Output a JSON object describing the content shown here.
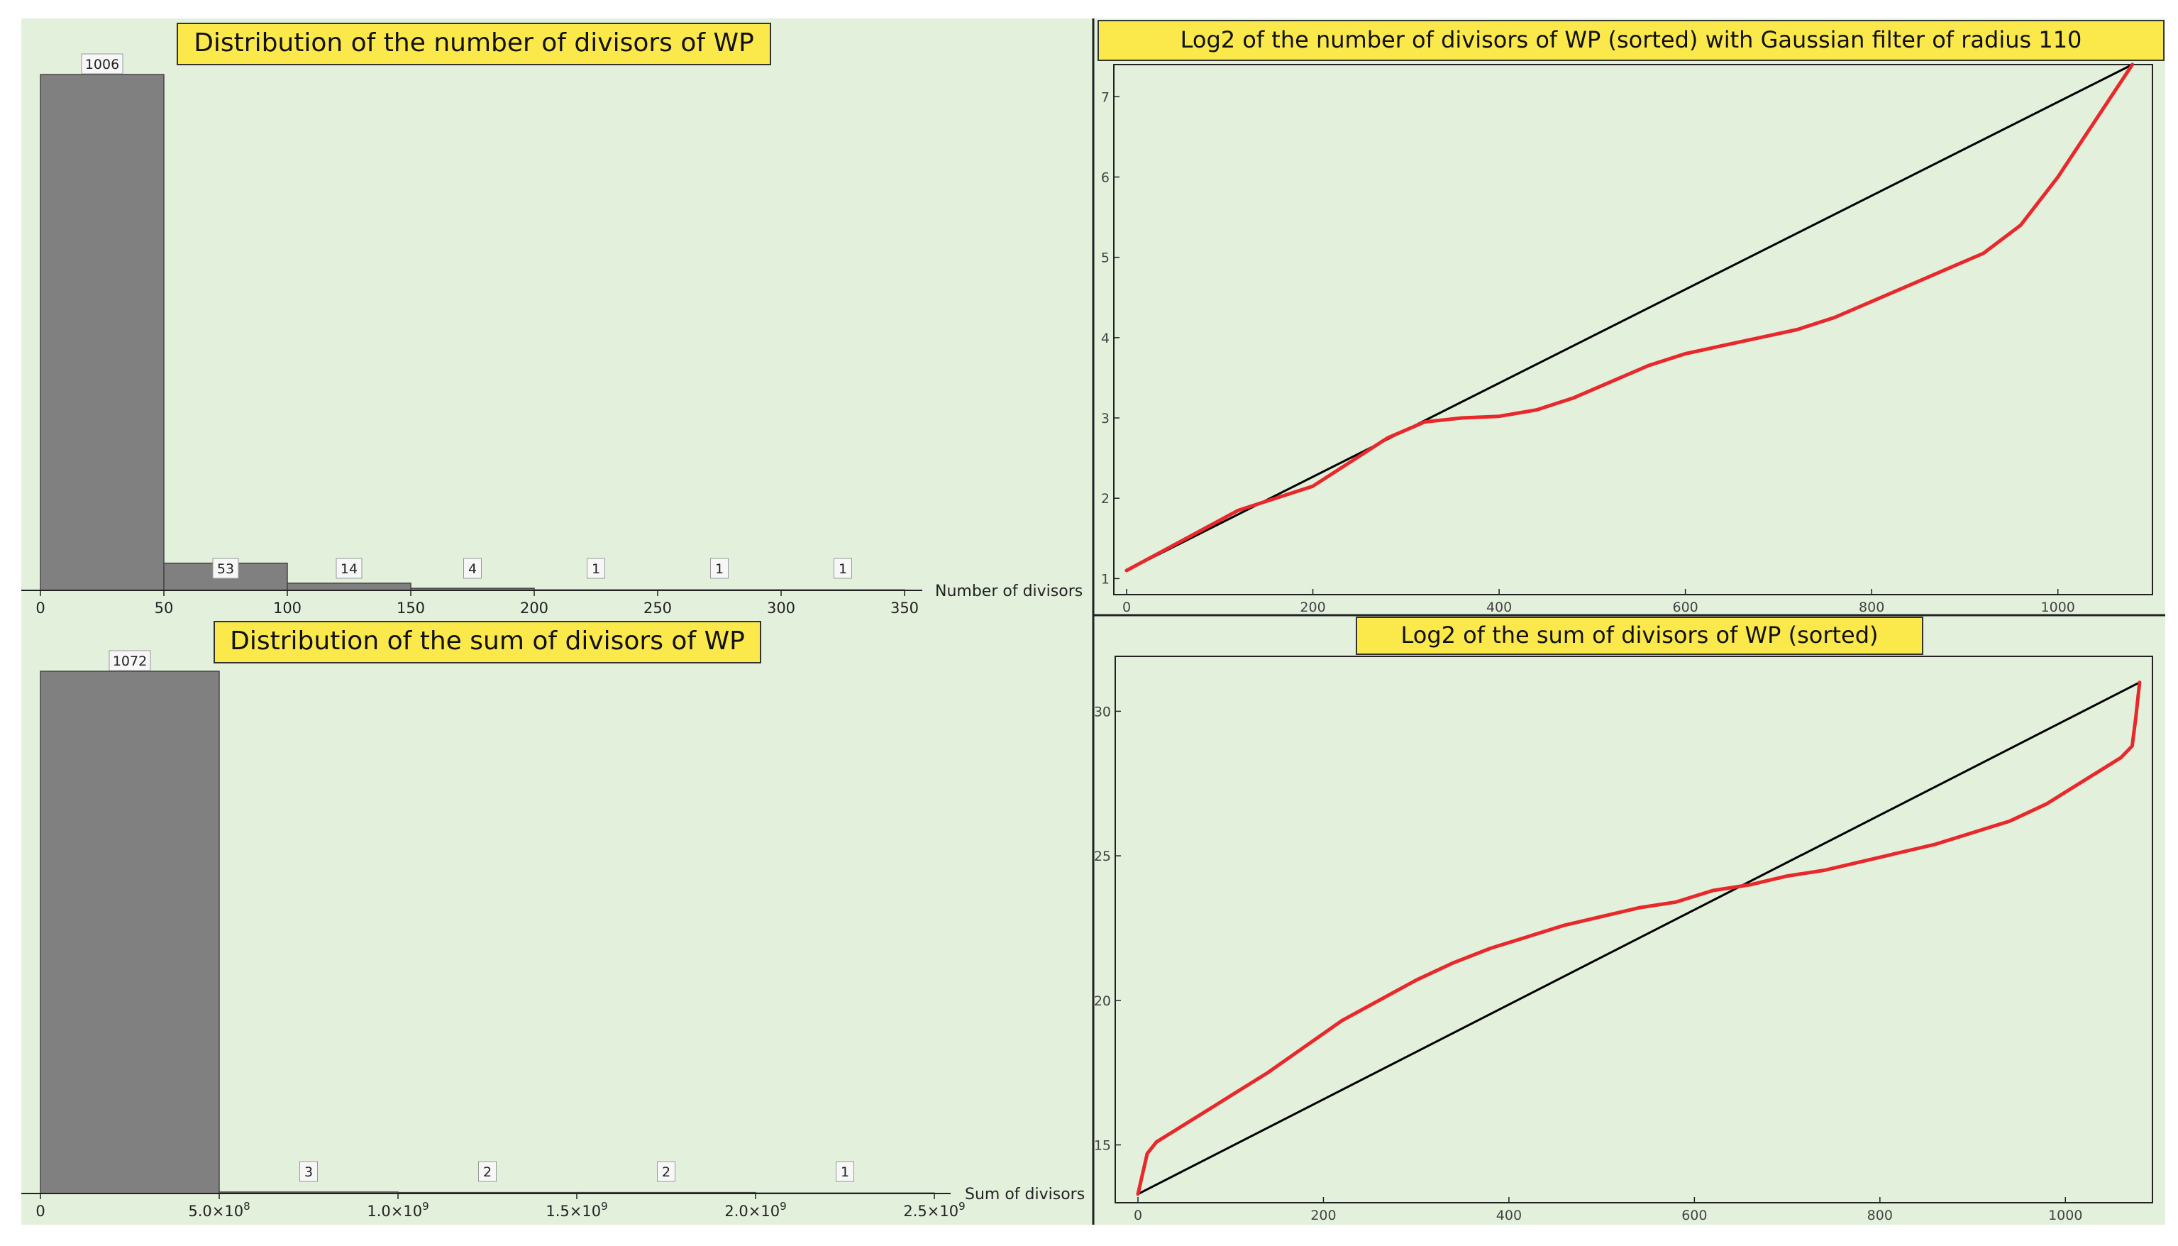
{
  "chart_data": [
    {
      "type": "bar",
      "title": "Distribution of the number of divisors of WP",
      "xlabel": "Number of divisors",
      "ylabel": "",
      "xlim": [
        0,
        350
      ],
      "bins": [
        {
          "from": 0,
          "to": 50,
          "count": 1006
        },
        {
          "from": 50,
          "to": 100,
          "count": 53
        },
        {
          "from": 100,
          "to": 150,
          "count": 14
        },
        {
          "from": 150,
          "to": 200,
          "count": 4
        },
        {
          "from": 200,
          "to": 250,
          "count": 1
        },
        {
          "from": 250,
          "to": 300,
          "count": 1
        },
        {
          "from": 300,
          "to": 350,
          "count": 1
        }
      ],
      "data_labels": [
        "1006",
        "53",
        "14",
        "4",
        "1",
        "1",
        "1"
      ],
      "x_ticks": [
        "0",
        "50",
        "100",
        "150",
        "200",
        "250",
        "300",
        "350"
      ],
      "colors": {
        "bar": "#808080",
        "background": "#e3f0dc",
        "title_box": "#fbe94c"
      }
    },
    {
      "type": "line",
      "title": "Log2 of the number of divisors of WP (sorted) with Gaussian filter of radius 110",
      "xlim": [
        0,
        1100
      ],
      "ylim": [
        0.8,
        7.4
      ],
      "x_ticks": [
        "0",
        "200",
        "400",
        "600",
        "800",
        "1000"
      ],
      "y_ticks": [
        "1",
        "2",
        "3",
        "4",
        "5",
        "6",
        "7"
      ],
      "series": [
        {
          "color": "#000000",
          "x": [
            0,
            1080
          ],
          "y": [
            1.1,
            7.4
          ]
        },
        {
          "color": "#e8282b",
          "x": [
            0,
            40,
            80,
            120,
            160,
            200,
            240,
            280,
            320,
            360,
            400,
            440,
            480,
            520,
            560,
            600,
            640,
            680,
            720,
            760,
            800,
            840,
            880,
            920,
            960,
            1000,
            1040,
            1080
          ],
          "y": [
            1.1,
            1.35,
            1.6,
            1.85,
            2.0,
            2.15,
            2.45,
            2.75,
            2.95,
            3.0,
            3.02,
            3.1,
            3.25,
            3.45,
            3.65,
            3.8,
            3.9,
            4.0,
            4.1,
            4.25,
            4.45,
            4.65,
            4.85,
            5.05,
            5.4,
            6.0,
            6.7,
            7.4
          ]
        }
      ],
      "colors": {
        "background": "#e3f0dc",
        "title_box": "#fbe94c"
      }
    },
    {
      "type": "bar",
      "title": "Distribution of the sum of divisors of WP",
      "xlabel": "Sum of divisors",
      "ylabel": "",
      "xlim": [
        0,
        2500000000
      ],
      "bins": [
        {
          "from": 0,
          "to": 500000000,
          "count": 1072
        },
        {
          "from": 500000000,
          "to": 1000000000,
          "count": 3
        },
        {
          "from": 1000000000,
          "to": 1500000000,
          "count": 2
        },
        {
          "from": 1500000000,
          "to": 2000000000,
          "count": 2
        },
        {
          "from": 2000000000,
          "to": 2500000000,
          "count": 1
        }
      ],
      "data_labels": [
        "1072",
        "3",
        "2",
        "2",
        "1"
      ],
      "x_ticks": [
        {
          "base": "0",
          "exp": ""
        },
        {
          "base": "5.0×10",
          "exp": "8"
        },
        {
          "base": "1.0×10",
          "exp": "9"
        },
        {
          "base": "1.5×10",
          "exp": "9"
        },
        {
          "base": "2.0×10",
          "exp": "9"
        },
        {
          "base": "2.5×10",
          "exp": "9"
        }
      ],
      "colors": {
        "bar": "#808080",
        "background": "#e3f0dc",
        "title_box": "#fbe94c"
      }
    },
    {
      "type": "line",
      "title": "Log2 of the sum of divisors of WP (sorted)",
      "xlim": [
        0,
        1100
      ],
      "ylim": [
        13,
        31.9
      ],
      "x_ticks": [
        "0",
        "200",
        "400",
        "600",
        "800",
        "1000"
      ],
      "y_ticks": [
        "15",
        "20",
        "25",
        "30"
      ],
      "series": [
        {
          "color": "#000000",
          "x": [
            0,
            1080
          ],
          "y": [
            13.3,
            31.0
          ]
        },
        {
          "color": "#e8282b",
          "x": [
            0,
            5,
            10,
            20,
            40,
            60,
            80,
            100,
            140,
            180,
            220,
            260,
            300,
            340,
            380,
            420,
            460,
            500,
            540,
            580,
            620,
            660,
            700,
            740,
            780,
            820,
            860,
            900,
            940,
            980,
            1010,
            1040,
            1060,
            1072,
            1076,
            1080
          ],
          "y": [
            13.3,
            14.0,
            14.7,
            15.1,
            15.5,
            15.9,
            16.3,
            16.7,
            17.5,
            18.4,
            19.3,
            20.0,
            20.7,
            21.3,
            21.8,
            22.2,
            22.6,
            22.9,
            23.2,
            23.4,
            23.8,
            24.0,
            24.3,
            24.5,
            24.8,
            25.1,
            25.4,
            25.8,
            26.2,
            26.8,
            27.4,
            28.0,
            28.4,
            28.8,
            29.8,
            31.0
          ]
        }
      ],
      "colors": {
        "background": "#e3f0dc",
        "title_box": "#fbe94c"
      }
    }
  ]
}
